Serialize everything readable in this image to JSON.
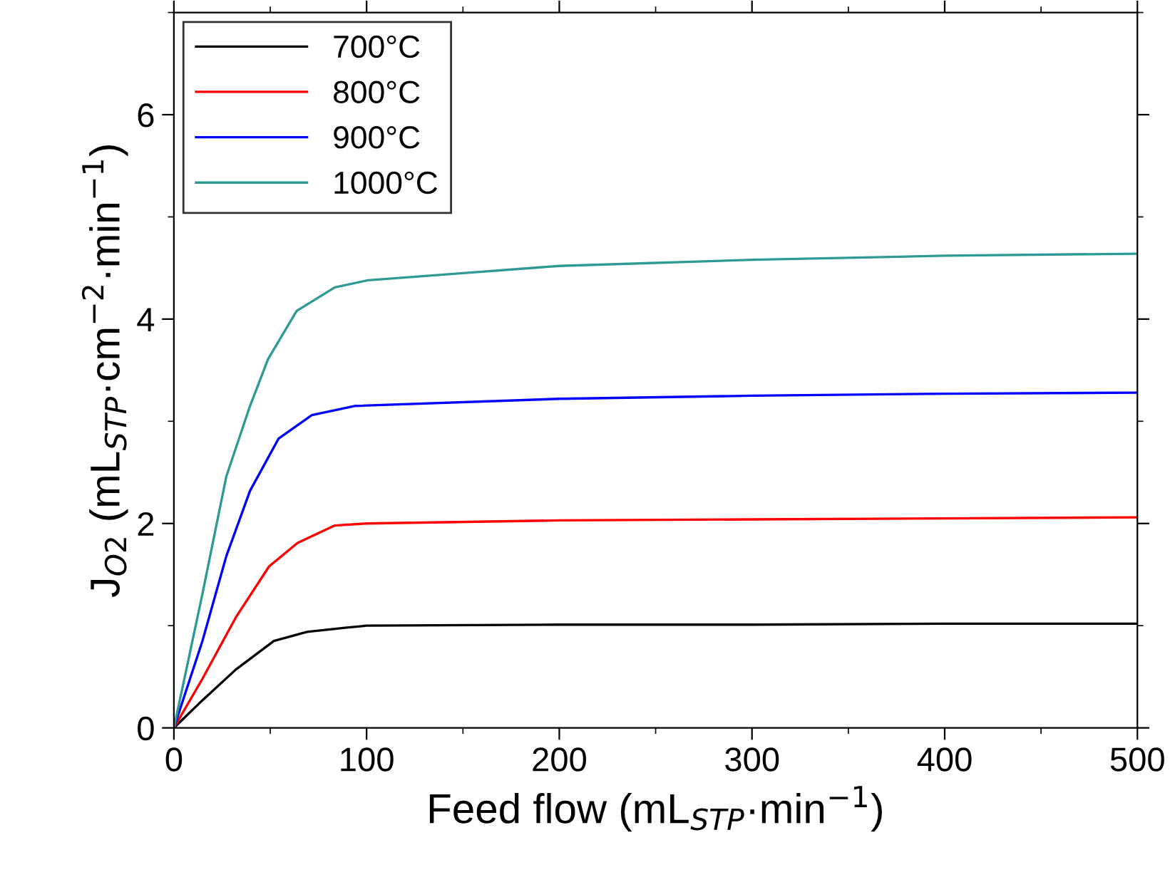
{
  "chart_data": {
    "type": "line",
    "xlabel": "Feed flow (mL$_{STP}$·min$^{−1}$)",
    "ylabel": "J$_{O2}$ (mL$_{STP}$·cm$^{−2}$·min$^{−1}$)",
    "xlim": [
      0,
      500
    ],
    "ylim": [
      0,
      7
    ],
    "xticks": [
      0,
      100,
      200,
      300,
      400,
      500
    ],
    "yticks": [
      0,
      2,
      4,
      6
    ],
    "grid": false,
    "legend": "top left",
    "marker": "none",
    "line_style": "solid",
    "series": [
      {
        "name": "700°C",
        "color": "#000000",
        "x": [
          0,
          14.8,
          32.1,
          51.9,
          69.1,
          88.8,
          100,
          200,
          300,
          400,
          500
        ],
        "values": [
          0,
          0.27,
          0.57,
          0.85,
          0.94,
          0.98,
          1.0,
          1.01,
          1.01,
          1.02,
          1.02
        ]
      },
      {
        "name": "800°C",
        "color": "#ff0000",
        "x": [
          0,
          14.8,
          32.1,
          49.4,
          64.2,
          83.5,
          100,
          200,
          300,
          400,
          500
        ],
        "values": [
          0,
          0.48,
          1.08,
          1.58,
          1.81,
          1.98,
          2.0,
          2.03,
          2.04,
          2.05,
          2.06
        ]
      },
      {
        "name": "900°C",
        "color": "#0000ff",
        "x": [
          0,
          14.8,
          27.2,
          39.5,
          54.3,
          71.6,
          93.8,
          200,
          300,
          400,
          500
        ],
        "values": [
          0,
          0.85,
          1.68,
          2.32,
          2.83,
          3.06,
          3.15,
          3.22,
          3.25,
          3.27,
          3.28
        ]
      },
      {
        "name": "1000°C",
        "color": "#2e9a94",
        "x": [
          0,
          14.8,
          27.2,
          39.5,
          48.9,
          63.7,
          83.5,
          100.7,
          150,
          200,
          300,
          400,
          500
        ],
        "values": [
          0,
          1.31,
          2.46,
          3.15,
          3.61,
          4.08,
          4.31,
          4.38,
          4.45,
          4.52,
          4.58,
          4.62,
          4.64
        ]
      }
    ]
  }
}
